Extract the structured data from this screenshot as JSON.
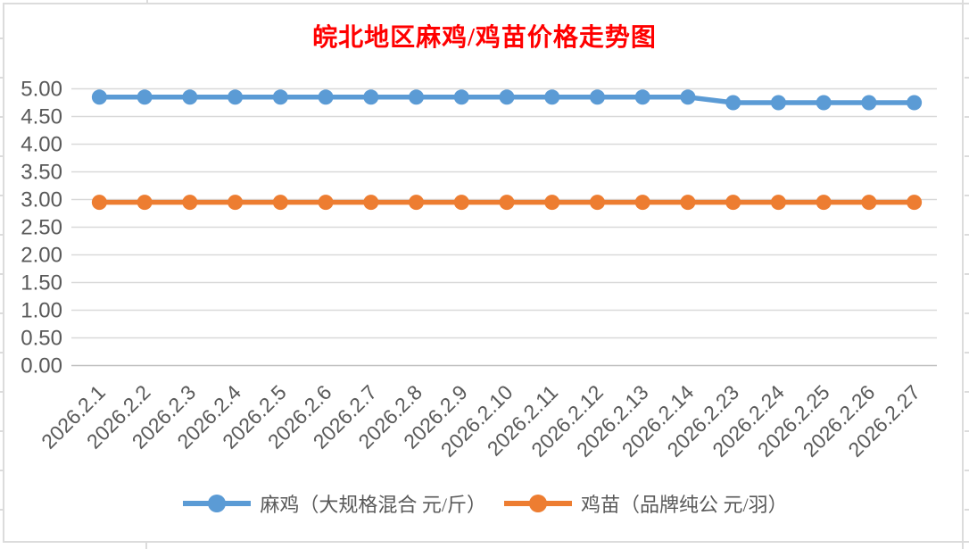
{
  "chart_data": {
    "type": "line",
    "title": "皖北地区麻鸡/鸡苗价格走势图",
    "title_color": "#ff0000",
    "categories": [
      "2026.2.1",
      "2026.2.2",
      "2026.2.3",
      "2026.2.4",
      "2026.2.5",
      "2026.2.6",
      "2026.2.7",
      "2026.2.8",
      "2026.2.9",
      "2026.2.10",
      "2026.2.11",
      "2026.2.12",
      "2026.2.13",
      "2026.2.14",
      "2026.2.23",
      "2026.2.24",
      "2026.2.25",
      "2026.2.26",
      "2026.2.27"
    ],
    "series": [
      {
        "name": "麻鸡（大规格混合 元/斤）",
        "color": "#5b9bd5",
        "values": [
          4.85,
          4.85,
          4.85,
          4.85,
          4.85,
          4.85,
          4.85,
          4.85,
          4.85,
          4.85,
          4.85,
          4.85,
          4.85,
          4.85,
          4.75,
          4.75,
          4.75,
          4.75,
          4.75
        ]
      },
      {
        "name": "鸡苗（品牌纯公 元/羽）",
        "color": "#ed7d31",
        "values": [
          2.95,
          2.95,
          2.95,
          2.95,
          2.95,
          2.95,
          2.95,
          2.95,
          2.95,
          2.95,
          2.95,
          2.95,
          2.95,
          2.95,
          2.95,
          2.95,
          2.95,
          2.95,
          2.95
        ]
      }
    ],
    "ylim": [
      0,
      5
    ],
    "ytick_step": 0.5,
    "yticks": [
      "0.00",
      "0.50",
      "1.00",
      "1.50",
      "2.00",
      "2.50",
      "3.00",
      "3.50",
      "4.00",
      "4.50",
      "5.00"
    ],
    "grid": true,
    "legend_position": "bottom",
    "xlabel": "",
    "ylabel": "",
    "x_tick_rotation": -45,
    "axis_label_color": "#595959",
    "gridline_color": "#d9d9d9",
    "axis_line_color": "#bfbfbf"
  }
}
